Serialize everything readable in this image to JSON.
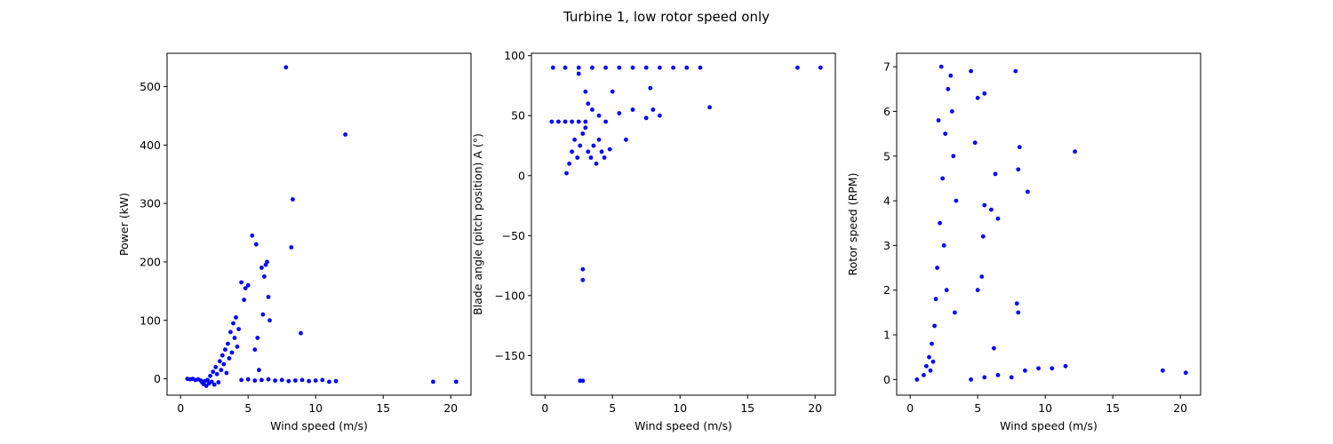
{
  "figure": {
    "title": "Turbine 1, low rotor speed only"
  },
  "chart_data": [
    {
      "type": "scatter",
      "xlabel": "Wind speed (m/s)",
      "ylabel": "Power (kW)",
      "xlim": [
        -1.0,
        21.5
      ],
      "ylim": [
        -28,
        557
      ],
      "xticks": [
        0,
        5,
        10,
        15,
        20
      ],
      "yticks": [
        0,
        100,
        200,
        300,
        400,
        500
      ],
      "color": "#0000ff",
      "series": [
        {
          "points": [
            [
              0.5,
              0
            ],
            [
              0.7,
              -1
            ],
            [
              0.9,
              0
            ],
            [
              1.1,
              -2
            ],
            [
              1.3,
              -1
            ],
            [
              1.5,
              -3
            ],
            [
              1.6,
              -6
            ],
            [
              1.7,
              -9
            ],
            [
              1.8,
              -4
            ],
            [
              1.9,
              -12
            ],
            [
              2.0,
              -2
            ],
            [
              2.1,
              -8
            ],
            [
              2.2,
              5
            ],
            [
              2.3,
              -5
            ],
            [
              2.4,
              12
            ],
            [
              2.5,
              -10
            ],
            [
              2.6,
              20
            ],
            [
              2.7,
              8
            ],
            [
              2.8,
              -6
            ],
            [
              2.9,
              30
            ],
            [
              3.0,
              15
            ],
            [
              3.1,
              40
            ],
            [
              3.2,
              25
            ],
            [
              3.3,
              50
            ],
            [
              3.4,
              10
            ],
            [
              3.5,
              60
            ],
            [
              3.6,
              35
            ],
            [
              3.7,
              80
            ],
            [
              3.8,
              45
            ],
            [
              3.9,
              95
            ],
            [
              4.0,
              70
            ],
            [
              4.1,
              105
            ],
            [
              4.2,
              55
            ],
            [
              4.3,
              85
            ],
            [
              4.5,
              165
            ],
            [
              4.7,
              135
            ],
            [
              4.8,
              155
            ],
            [
              5.0,
              160
            ],
            [
              5.3,
              245
            ],
            [
              5.5,
              50
            ],
            [
              5.6,
              230
            ],
            [
              5.7,
              70
            ],
            [
              5.8,
              15
            ],
            [
              6.0,
              190
            ],
            [
              6.1,
              110
            ],
            [
              6.2,
              175
            ],
            [
              6.3,
              195
            ],
            [
              6.4,
              200
            ],
            [
              6.5,
              140
            ],
            [
              6.6,
              100
            ],
            [
              7.8,
              533
            ],
            [
              8.2,
              225
            ],
            [
              8.3,
              307
            ],
            [
              8.9,
              78
            ],
            [
              12.2,
              418
            ],
            [
              4.5,
              -2
            ],
            [
              5.0,
              -1
            ],
            [
              5.5,
              -3
            ],
            [
              6.0,
              -2
            ],
            [
              6.5,
              -1
            ],
            [
              7.0,
              -3
            ],
            [
              7.5,
              -2
            ],
            [
              8.0,
              -4
            ],
            [
              8.5,
              -3
            ],
            [
              9.0,
              -2
            ],
            [
              9.5,
              -4
            ],
            [
              10.0,
              -3
            ],
            [
              10.5,
              -2
            ],
            [
              11.0,
              -5
            ],
            [
              11.5,
              -4
            ],
            [
              18.7,
              -5
            ],
            [
              20.4,
              -5
            ]
          ]
        }
      ]
    },
    {
      "type": "scatter",
      "xlabel": "Wind speed (m/s)",
      "ylabel": "Blade angle (pitch position) A (°)",
      "xlim": [
        -1.0,
        21.5
      ],
      "ylim": [
        -183,
        102
      ],
      "xticks": [
        0,
        5,
        10,
        15,
        20
      ],
      "yticks": [
        -150,
        -100,
        -50,
        0,
        50,
        100
      ],
      "color": "#0000ff",
      "series": [
        {
          "points": [
            [
              0.6,
              90
            ],
            [
              1.5,
              90
            ],
            [
              2.5,
              90
            ],
            [
              3.5,
              90
            ],
            [
              4.5,
              90
            ],
            [
              5.5,
              90
            ],
            [
              6.5,
              90
            ],
            [
              7.5,
              90
            ],
            [
              8.5,
              90
            ],
            [
              9.5,
              90
            ],
            [
              10.5,
              90
            ],
            [
              11.5,
              90
            ],
            [
              18.7,
              90
            ],
            [
              20.4,
              90
            ],
            [
              0.5,
              45
            ],
            [
              1.0,
              45
            ],
            [
              1.5,
              45
            ],
            [
              2.0,
              45
            ],
            [
              2.5,
              45
            ],
            [
              3.0,
              45
            ],
            [
              1.6,
              2
            ],
            [
              1.8,
              10
            ],
            [
              2.0,
              20
            ],
            [
              2.2,
              30
            ],
            [
              2.4,
              15
            ],
            [
              2.6,
              25
            ],
            [
              2.8,
              35
            ],
            [
              3.0,
              40
            ],
            [
              3.2,
              20
            ],
            [
              3.4,
              15
            ],
            [
              3.6,
              25
            ],
            [
              3.8,
              10
            ],
            [
              4.0,
              30
            ],
            [
              4.2,
              20
            ],
            [
              4.4,
              15
            ],
            [
              4.8,
              22
            ],
            [
              2.5,
              85
            ],
            [
              3.0,
              70
            ],
            [
              3.2,
              60
            ],
            [
              3.5,
              55
            ],
            [
              4.0,
              50
            ],
            [
              4.5,
              45
            ],
            [
              5.0,
              70
            ],
            [
              5.5,
              52
            ],
            [
              6.0,
              30
            ],
            [
              6.5,
              55
            ],
            [
              7.5,
              48
            ],
            [
              7.8,
              73
            ],
            [
              8.0,
              55
            ],
            [
              8.5,
              50
            ],
            [
              12.2,
              57
            ],
            [
              2.8,
              -78
            ],
            [
              2.8,
              -87
            ],
            [
              2.6,
              -171
            ],
            [
              2.8,
              -171
            ]
          ]
        }
      ]
    },
    {
      "type": "scatter",
      "xlabel": "Wind speed (m/s)",
      "ylabel": "Rotor speed (RPM)",
      "xlim": [
        -1.0,
        21.5
      ],
      "ylim": [
        -0.35,
        7.3
      ],
      "xticks": [
        0,
        5,
        10,
        15,
        20
      ],
      "yticks": [
        0,
        1,
        2,
        3,
        4,
        5,
        6,
        7
      ],
      "color": "#0000ff",
      "series": [
        {
          "points": [
            [
              0.5,
              0.0
            ],
            [
              1.0,
              0.1
            ],
            [
              1.2,
              0.3
            ],
            [
              1.4,
              0.5
            ],
            [
              1.6,
              0.8
            ],
            [
              1.8,
              1.2
            ],
            [
              1.5,
              0.2
            ],
            [
              1.7,
              0.4
            ],
            [
              1.9,
              1.8
            ],
            [
              2.0,
              2.5
            ],
            [
              2.2,
              3.5
            ],
            [
              2.4,
              4.5
            ],
            [
              2.6,
              5.5
            ],
            [
              2.8,
              6.5
            ],
            [
              2.3,
              7.0
            ],
            [
              3.0,
              6.8
            ],
            [
              3.2,
              5.0
            ],
            [
              2.5,
              3.0
            ],
            [
              2.7,
              2.0
            ],
            [
              3.4,
              4.0
            ],
            [
              3.1,
              6.0
            ],
            [
              2.1,
              5.8
            ],
            [
              3.3,
              1.5
            ],
            [
              4.5,
              0.0
            ],
            [
              5.5,
              0.05
            ],
            [
              6.5,
              0.1
            ],
            [
              7.5,
              0.05
            ],
            [
              8.5,
              0.2
            ],
            [
              9.5,
              0.25
            ],
            [
              10.5,
              0.25
            ],
            [
              11.5,
              0.3
            ],
            [
              4.5,
              6.9
            ],
            [
              5.0,
              6.3
            ],
            [
              5.5,
              6.4
            ],
            [
              4.8,
              5.3
            ],
            [
              5.5,
              3.9
            ],
            [
              5.3,
              2.3
            ],
            [
              5.0,
              2.0
            ],
            [
              5.4,
              3.2
            ],
            [
              6.3,
              4.6
            ],
            [
              6.0,
              3.8
            ],
            [
              6.5,
              3.6
            ],
            [
              6.2,
              0.7
            ],
            [
              7.8,
              6.9
            ],
            [
              8.1,
              5.2
            ],
            [
              8.0,
              4.7
            ],
            [
              8.7,
              4.2
            ],
            [
              7.9,
              1.7
            ],
            [
              8.0,
              1.5
            ],
            [
              12.2,
              5.1
            ],
            [
              18.7,
              0.2
            ],
            [
              20.4,
              0.15
            ]
          ]
        }
      ]
    }
  ]
}
